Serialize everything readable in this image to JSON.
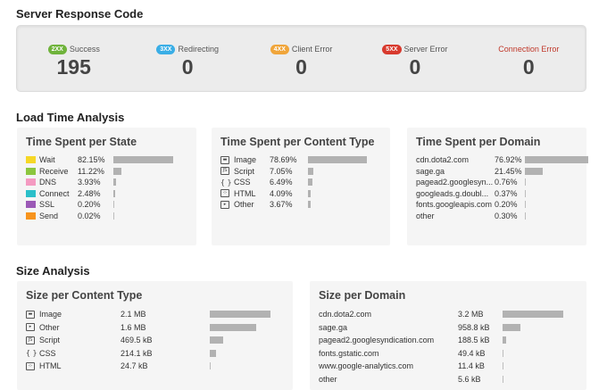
{
  "server_response": {
    "title": "Server Response Code",
    "codes": [
      {
        "badge": "2XX",
        "label": "Success",
        "count": "195",
        "color": "#6fb33b"
      },
      {
        "badge": "3XX",
        "label": "Redirecting",
        "count": "0",
        "color": "#3aaee6"
      },
      {
        "badge": "4XX",
        "label": "Client Error",
        "count": "0",
        "color": "#f0a53a"
      },
      {
        "badge": "5XX",
        "label": "Server Error",
        "count": "0",
        "color": "#d83a2e"
      },
      {
        "badge": "",
        "label": "Connection Error",
        "count": "0",
        "color": "#c0392b"
      }
    ]
  },
  "load_time": {
    "title": "Load Time Analysis",
    "per_state": {
      "title": "Time Spent per State",
      "rows": [
        {
          "label": "Wait",
          "value": "82.15%",
          "fraction": 0.8215,
          "color": "#f6d726"
        },
        {
          "label": "Receive",
          "value": "11.22%",
          "fraction": 0.1122,
          "color": "#8cc63f"
        },
        {
          "label": "DNS",
          "value": "3.93%",
          "fraction": 0.0393,
          "color": "#f49ac1"
        },
        {
          "label": "Connect",
          "value": "2.48%",
          "fraction": 0.0248,
          "color": "#2bbfc9"
        },
        {
          "label": "SSL",
          "value": "0.20%",
          "fraction": 0.002,
          "color": "#9b59b6"
        },
        {
          "label": "Send",
          "value": "0.02%",
          "fraction": 0.0002,
          "color": "#f7941d"
        }
      ]
    },
    "per_content_type": {
      "title": "Time Spent per Content Type",
      "rows": [
        {
          "label": "Image",
          "value": "78.69%",
          "fraction": 0.7869,
          "icon": "image-icon"
        },
        {
          "label": "Script",
          "value": "7.05%",
          "fraction": 0.0705,
          "icon": "script-icon"
        },
        {
          "label": "CSS",
          "value": "6.49%",
          "fraction": 0.0649,
          "icon": "css-icon"
        },
        {
          "label": "HTML",
          "value": "4.09%",
          "fraction": 0.0409,
          "icon": "html-icon"
        },
        {
          "label": "Other",
          "value": "3.67%",
          "fraction": 0.0367,
          "icon": "other-icon"
        }
      ]
    },
    "per_domain": {
      "title": "Time Spent per Domain",
      "rows": [
        {
          "label": "cdn.dota2.com",
          "value": "76.92%",
          "fraction": 0.7692
        },
        {
          "label": "sage.ga",
          "value": "21.45%",
          "fraction": 0.2145
        },
        {
          "label": "pagead2.googlesyn...",
          "value": "0.76%",
          "fraction": 0.0076
        },
        {
          "label": "googleads.g.doubl...",
          "value": "0.37%",
          "fraction": 0.0037
        },
        {
          "label": "fonts.googleapis.com",
          "value": "0.20%",
          "fraction": 0.002
        },
        {
          "label": "other",
          "value": "0.30%",
          "fraction": 0.003
        }
      ]
    }
  },
  "size": {
    "title": "Size Analysis",
    "per_content_type": {
      "title": "Size per Content Type",
      "rows": [
        {
          "label": "Image",
          "value": "2.1 MB",
          "fraction": 0.4928,
          "icon": "image-icon"
        },
        {
          "label": "Other",
          "value": "1.6 MB",
          "fraction": 0.3755,
          "icon": "other-icon"
        },
        {
          "label": "Script",
          "value": "469.5 kB",
          "fraction": 0.1076,
          "icon": "script-icon"
        },
        {
          "label": "CSS",
          "value": "214.1 kB",
          "fraction": 0.0491,
          "icon": "css-icon"
        },
        {
          "label": "HTML",
          "value": "24.7 kB",
          "fraction": 0.0057,
          "icon": "html-icon"
        }
      ]
    },
    "per_domain": {
      "title": "Size per Domain",
      "rows": [
        {
          "label": "cdn.dota2.com",
          "value": "3.2 MB",
          "fraction": 0.7345
        },
        {
          "label": "sage.ga",
          "value": "958.8 kB",
          "fraction": 0.2149
        },
        {
          "label": "pagead2.googlesyndication.com",
          "value": "188.5 kB",
          "fraction": 0.0423
        },
        {
          "label": "fonts.gstatic.com",
          "value": "49.4 kB",
          "fraction": 0.0111
        },
        {
          "label": "www.google-analytics.com",
          "value": "11.4 kB",
          "fraction": 0.0026
        },
        {
          "label": "other",
          "value": "5.6 kB",
          "fraction": 0.0013
        }
      ]
    }
  }
}
